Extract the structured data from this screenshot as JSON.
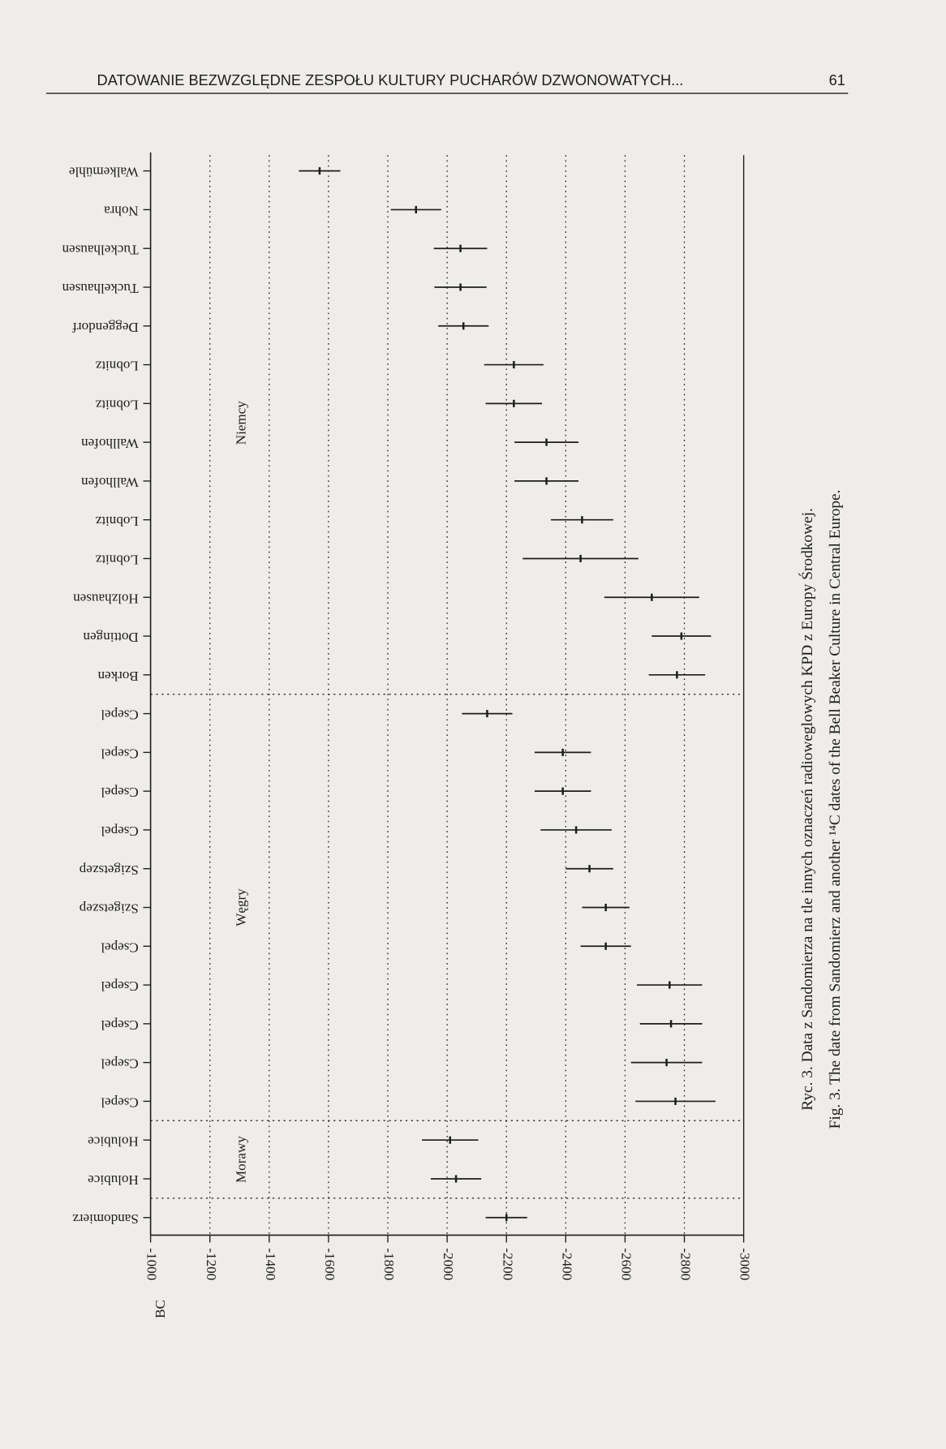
{
  "header": {
    "title": "DATOWANIE BEZWZGLĘDNE ZESPOŁU KULTURY PUCHARÓW DZWONOWATYCH...",
    "page": "61"
  },
  "chart_data": {
    "type": "errorbar",
    "categories": [
      "Sandomierz",
      "Holubice",
      "Holubice",
      "Csepel",
      "Csepel",
      "Csepel",
      "Csepel",
      "Csepel",
      "Szigetszep",
      "Szigetszep",
      "Csepel",
      "Csepel",
      "Csepel",
      "Csepel",
      "Borken",
      "Dottingen",
      "Holzhausen",
      "Lobnitz",
      "Lobnitz",
      "Wallhofen",
      "Wallhofen",
      "Lobnitz",
      "Lobnitz",
      "Deggendorf",
      "Tuckelhausen",
      "Tuckelhausen",
      "Nohra",
      "Walkemühle"
    ],
    "values": [
      -2200,
      -2030,
      -2010,
      -2770,
      -2740,
      -2755,
      -2750,
      -2535,
      -2535,
      -2480,
      -2435,
      -2390,
      -2390,
      -2135,
      -2775,
      -2790,
      -2690,
      -2450,
      -2455,
      -2335,
      -2335,
      -2225,
      -2225,
      -2055,
      -2045,
      -2045,
      -1895,
      -1570
    ],
    "errors": [
      70,
      85,
      95,
      135,
      120,
      105,
      110,
      85,
      80,
      80,
      120,
      95,
      95,
      85,
      95,
      100,
      160,
      195,
      105,
      108,
      108,
      95,
      100,
      85,
      88,
      90,
      85,
      70
    ],
    "groups": [
      {
        "name": null,
        "count": 1
      },
      {
        "name": "Morawy",
        "count": 2
      },
      {
        "name": "Węgry",
        "count": 11
      },
      {
        "name": "Niemcy",
        "count": 14
      }
    ],
    "x_label": "BC",
    "xlim": [
      -1000,
      -3000
    ],
    "xticks": [
      -1000,
      -1200,
      -1400,
      -1600,
      -1800,
      -2000,
      -2200,
      -2400,
      -2600,
      -2800,
      -3000
    ],
    "grid": true,
    "color": "#1d1d1d"
  },
  "caption": {
    "polish": "Ryc. 3. Data z Sandomierza na tle innych oznaczeń radioweglowych KPD z Europy Środkowej.",
    "english": "Fig. 3. The date from Sandomierz and another ¹⁴C dates of the Bell Beaker Culture in Central Europe."
  }
}
